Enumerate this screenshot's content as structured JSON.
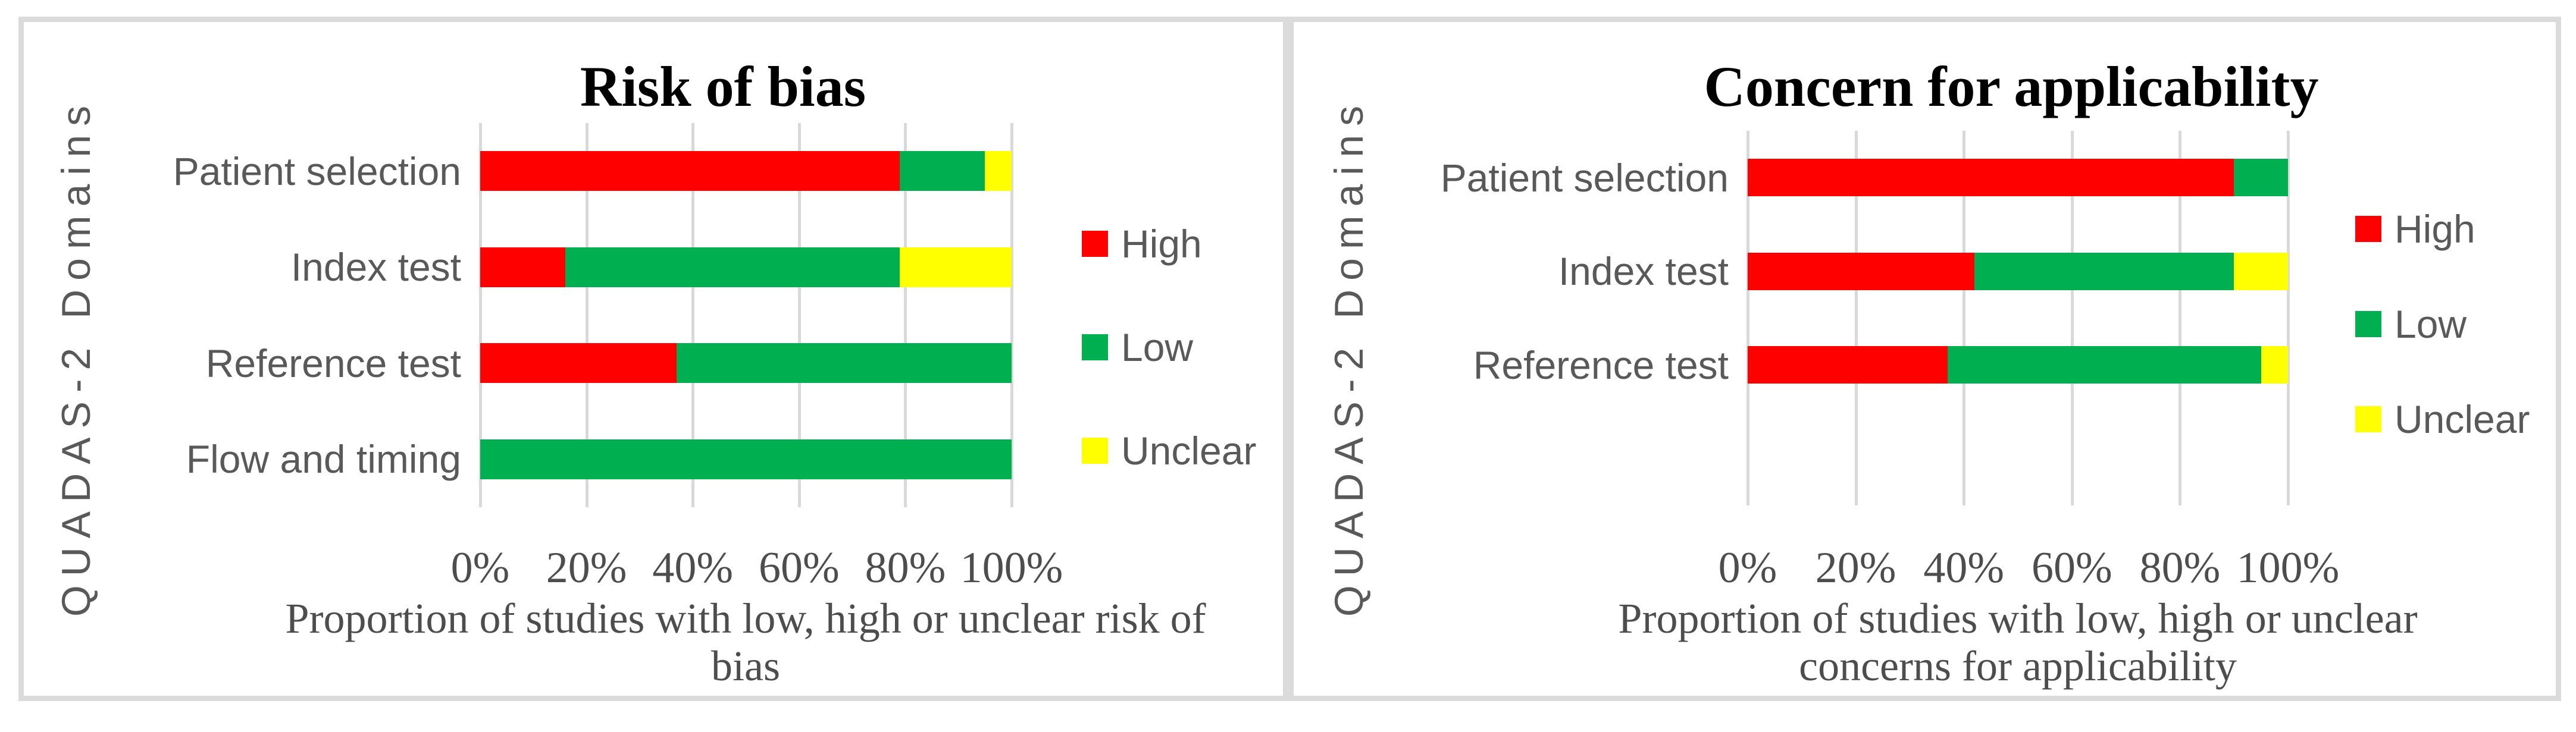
{
  "figure": {
    "kind": "QUADAS-2 quality assessment figure",
    "panel_border_color": "#dbdbdb",
    "background": "#ffffff",
    "gridline_color": "#d9d9d9",
    "text_gray": "#595959",
    "title_color": "#000000"
  },
  "chart_data": [
    {
      "type": "bar",
      "orientation": "horizontal",
      "stacked": true,
      "title": "Risk of bias",
      "ylabel": "QUADAS-2 Domains",
      "xlabel": "Proportion of studies with low, high or unclear risk of bias",
      "xlabel_lines": [
        "Proportion of studies with low, high or unclear risk of",
        "bias"
      ],
      "categories": [
        "Patient selection",
        "Index test",
        "Reference test",
        "Flow and timing"
      ],
      "series": [
        {
          "name": "High",
          "color": "#ff0000",
          "values": [
            79,
            16,
            37,
            0
          ]
        },
        {
          "name": "Low",
          "color": "#00b050",
          "values": [
            16,
            63,
            63,
            100
          ]
        },
        {
          "name": "Unclear",
          "color": "#ffff00",
          "values": [
            5,
            21,
            0,
            0
          ]
        }
      ],
      "xlim": [
        0,
        100
      ],
      "xticks": [
        "0%",
        "20%",
        "40%",
        "60%",
        "80%",
        "100%"
      ],
      "grid": true,
      "legend_position": "right"
    },
    {
      "type": "bar",
      "orientation": "horizontal",
      "stacked": true,
      "title": "Concern for applicability",
      "ylabel": "QUADAS-2 Domains",
      "xlabel": "Proportion of studies with low, high or unclear concerns for applicability",
      "xlabel_lines": [
        "Proportion of studies with low, high or unclear",
        "concerns for applicability"
      ],
      "categories": [
        "Patient selection",
        "Index test",
        "Reference test"
      ],
      "series": [
        {
          "name": "High",
          "color": "#ff0000",
          "values": [
            90,
            42,
            37
          ]
        },
        {
          "name": "Low",
          "color": "#00b050",
          "values": [
            10,
            48,
            58
          ]
        },
        {
          "name": "Unclear",
          "color": "#ffff00",
          "values": [
            0,
            10,
            5
          ]
        }
      ],
      "xlim": [
        0,
        100
      ],
      "xticks": [
        "0%",
        "20%",
        "40%",
        "60%",
        "80%",
        "100%"
      ],
      "grid": true,
      "legend_position": "right",
      "note_empty_fourth_band": true
    }
  ]
}
